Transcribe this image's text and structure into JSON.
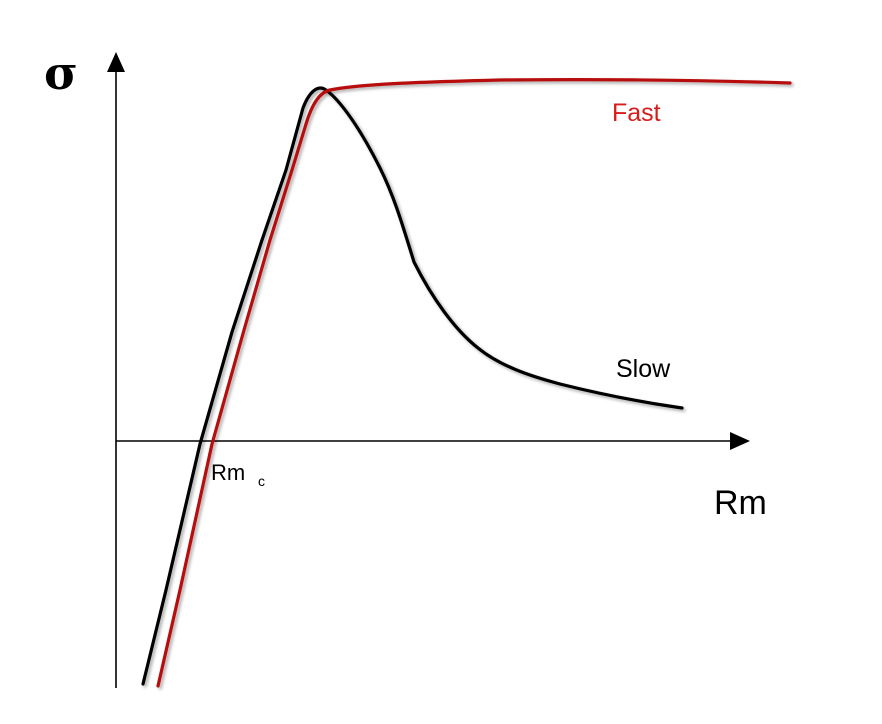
{
  "diagram": {
    "y_axis_label": "σ",
    "x_axis_label": "Rm",
    "critical_label_main": "Rm",
    "critical_label_sub": "c",
    "curves": {
      "fast": {
        "label": "Fast",
        "color": "#c00000"
      },
      "slow": {
        "label": "Slow",
        "color": "#000000"
      }
    },
    "axis_color": "#000000"
  }
}
